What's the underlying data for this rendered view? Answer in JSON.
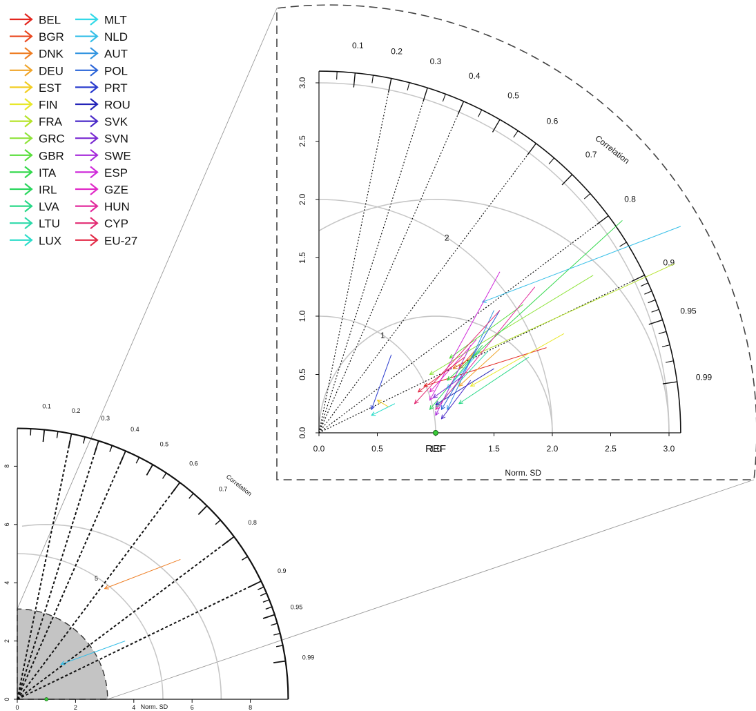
{
  "legend": {
    "items": [
      {
        "label": "BEL",
        "color": "#e3261f"
      },
      {
        "label": "BGR",
        "color": "#ea4a22"
      },
      {
        "label": "DNK",
        "color": "#ee7d22"
      },
      {
        "label": "DEU",
        "color": "#f0a52a"
      },
      {
        "label": "EST",
        "color": "#f2cd22"
      },
      {
        "label": "FIN",
        "color": "#e8e82a"
      },
      {
        "label": "FRA",
        "color": "#b5e32a"
      },
      {
        "label": "GRC",
        "color": "#8ee33a"
      },
      {
        "label": "GBR",
        "color": "#58de3a"
      },
      {
        "label": "ITA",
        "color": "#33d84c"
      },
      {
        "label": "IRL",
        "color": "#2bd65e"
      },
      {
        "label": "LVA",
        "color": "#28d887"
      },
      {
        "label": "LTU",
        "color": "#2bd9a9"
      },
      {
        "label": "LUX",
        "color": "#2bdcc9"
      },
      {
        "label": "MLT",
        "color": "#33d9e8"
      },
      {
        "label": "NLD",
        "color": "#36bfe8"
      },
      {
        "label": "AUT",
        "color": "#3295e0"
      },
      {
        "label": "POL",
        "color": "#2a64d8"
      },
      {
        "label": "PRT",
        "color": "#2a3cce"
      },
      {
        "label": "ROU",
        "color": "#2424b8"
      },
      {
        "label": "SVK",
        "color": "#4a2ac8"
      },
      {
        "label": "SVN",
        "color": "#7a2ad2"
      },
      {
        "label": "SWE",
        "color": "#a62ada"
      },
      {
        "label": "ESP",
        "color": "#cf2ada"
      },
      {
        "label": "GZE",
        "color": "#e02ac8"
      },
      {
        "label": "HUN",
        "color": "#e22a9c"
      },
      {
        "label": "CYP",
        "color": "#e22a72"
      },
      {
        "label": "EU-27",
        "color": "#e22a46"
      }
    ]
  },
  "chart_data": [
    {
      "type": "scatter",
      "xlabel": "Norm. SD",
      "ylabel": "",
      "corr_label": "Correlation",
      "xlim": [
        0,
        9.3
      ],
      "ylim": [
        0,
        9.3
      ],
      "x_ticks": [
        "0",
        "2",
        "4",
        "6",
        "8"
      ],
      "y_ticks": [
        "0",
        "2",
        "4",
        "6",
        "8"
      ],
      "corr_ticks": [
        "0.1",
        "0.2",
        "0.3",
        "0.4",
        "0.5",
        "0.6",
        "0.7",
        "0.8",
        "0.9",
        "0.95",
        "0.99"
      ],
      "corr_lines": [
        0.2,
        0.3,
        0.4,
        0.6,
        0.8,
        0.9
      ],
      "sd_arcs": [
        {
          "r": 5,
          "label": "5"
        }
      ],
      "ref_arcs": [
        6
      ],
      "zoom_region_sd": 3.1,
      "arrows": [
        {
          "label": "DNK",
          "x0": 5.6,
          "y0": 4.8,
          "x1": 3.0,
          "y1": 3.8
        },
        {
          "label": "NLD",
          "x0": 3.7,
          "y0": 2.0,
          "x1": 1.5,
          "y1": 1.2
        }
      ]
    },
    {
      "type": "scatter",
      "xlabel": "Norm. SD",
      "ylabel": "",
      "corr_label": "Correlation",
      "ref_label": "REF",
      "xlim": [
        0,
        3.1
      ],
      "ylim": [
        0,
        3.1
      ],
      "x_ticks": [
        "0.0",
        "0.5",
        "1.0",
        "1.5",
        "2.0",
        "2.5",
        "3.0"
      ],
      "y_ticks": [
        "0.0",
        "0.5",
        "1.0",
        "1.5",
        "2.0",
        "2.5",
        "3.0"
      ],
      "corr_ticks": [
        "0.1",
        "0.2",
        "0.3",
        "0.4",
        "0.5",
        "0.6",
        "0.7",
        "0.8",
        "0.9",
        "0.95",
        "0.99"
      ],
      "corr_lines": [
        0.2,
        0.3,
        0.4,
        0.6,
        0.8,
        0.9
      ],
      "sd_arcs": [
        {
          "r": 1,
          "label": "1"
        },
        {
          "r": 2,
          "label": "2"
        },
        {
          "r": 3,
          "label": ""
        }
      ],
      "ref_arcs": [
        1,
        2
      ],
      "ref_point": {
        "x": 1.0,
        "y": 0.0
      },
      "arrows": [
        {
          "label": "BEL",
          "x0": 1.95,
          "y0": 0.73,
          "x1": 0.9,
          "y1": 0.4
        },
        {
          "label": "BGR",
          "x0": 1.35,
          "y0": 0.72,
          "x1": 1.2,
          "y1": 0.55
        },
        {
          "label": "DNK",
          "x0": 1.4,
          "y0": 0.7,
          "x1": 1.15,
          "y1": 0.55
        },
        {
          "label": "DEU",
          "x0": 1.55,
          "y0": 0.72,
          "x1": 1.2,
          "y1": 0.4
        },
        {
          "label": "EST",
          "x0": 0.6,
          "y0": 0.22,
          "x1": 0.5,
          "y1": 0.28
        },
        {
          "label": "FIN",
          "x0": 2.1,
          "y0": 0.85,
          "x1": 1.3,
          "y1": 0.4
        },
        {
          "label": "FRA",
          "x0": 3.05,
          "y0": 1.45,
          "x1": 1.3,
          "y1": 0.65
        },
        {
          "label": "GRC",
          "x0": 2.35,
          "y0": 1.35,
          "x1": 0.95,
          "y1": 0.5
        },
        {
          "label": "GBR",
          "x0": 1.75,
          "y0": 1.1,
          "x1": 1.12,
          "y1": 0.64
        },
        {
          "label": "ITA",
          "x0": 2.6,
          "y0": 1.82,
          "x1": 1.1,
          "y1": 0.45
        },
        {
          "label": "IRL",
          "x0": 1.4,
          "y0": 0.75,
          "x1": 0.95,
          "y1": 0.2
        },
        {
          "label": "LVA",
          "x0": 1.8,
          "y0": 0.65,
          "x1": 1.2,
          "y1": 0.25
        },
        {
          "label": "LTU",
          "x0": 1.45,
          "y0": 0.7,
          "x1": 1.0,
          "y1": 0.22
        },
        {
          "label": "LUX",
          "x0": 0.65,
          "y0": 0.25,
          "x1": 0.45,
          "y1": 0.15
        },
        {
          "label": "MLT",
          "x0": 1.38,
          "y0": 0.7,
          "x1": 1.1,
          "y1": 0.38
        },
        {
          "label": "NLD",
          "x0": 3.1,
          "y0": 1.77,
          "x1": 1.4,
          "y1": 1.12
        },
        {
          "label": "AUT",
          "x0": 1.5,
          "y0": 1.05,
          "x1": 1.1,
          "y1": 0.2
        },
        {
          "label": "POL",
          "x0": 1.55,
          "y0": 1.05,
          "x1": 1.05,
          "y1": 0.2
        },
        {
          "label": "PRT",
          "x0": 0.62,
          "y0": 0.67,
          "x1": 0.45,
          "y1": 0.2
        },
        {
          "label": "ROU",
          "x0": 1.5,
          "y0": 0.55,
          "x1": 1.0,
          "y1": 0.24
        },
        {
          "label": "SVK",
          "x0": 1.3,
          "y0": 0.45,
          "x1": 1.05,
          "y1": 0.12
        },
        {
          "label": "SVN",
          "x0": 1.25,
          "y0": 0.5,
          "x1": 0.98,
          "y1": 0.3
        },
        {
          "label": "SWE",
          "x0": 1.3,
          "y0": 0.75,
          "x1": 1.0,
          "y1": 0.15
        },
        {
          "label": "ESP",
          "x0": 1.55,
          "y0": 1.38,
          "x1": 0.95,
          "y1": 0.28
        },
        {
          "label": "GZE",
          "x0": 1.35,
          "y0": 0.8,
          "x1": 0.95,
          "y1": 0.35
        },
        {
          "label": "HUN",
          "x0": 1.85,
          "y0": 1.25,
          "x1": 1.0,
          "y1": 0.2
        },
        {
          "label": "CYP",
          "x0": 1.55,
          "y0": 1.05,
          "x1": 0.82,
          "y1": 0.25
        },
        {
          "label": "EU-27",
          "x0": 1.25,
          "y0": 0.65,
          "x1": 0.85,
          "y1": 0.35
        }
      ]
    }
  ]
}
